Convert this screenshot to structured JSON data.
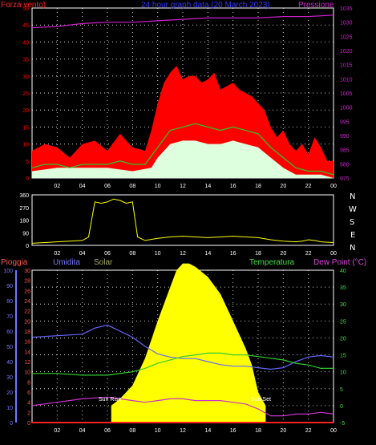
{
  "colors": {
    "background": "#000000",
    "gust": "#ff0000",
    "average_wind": "#22cc22",
    "min_wind": "#ddffdd",
    "pressure": "#cc22cc",
    "direction": "#ffff00",
    "humidity": "#6666ff",
    "temperature": "#33cc33",
    "dewpoint": "#cc33cc",
    "rain": "#ff2222",
    "solar": "#ffff00",
    "rain_axis": "#ff5555",
    "hum_axis": "#7777ff",
    "temp_axis": "#44dd44",
    "grid": "#ffffff",
    "title": "#3333ff"
  },
  "wind_panel": {
    "left_label": "Forza vento)",
    "title": "24 hour graph data (20 March 2023)",
    "right_label": "Pressione"
  },
  "dir_panel": {
    "compass": [
      "N",
      "W",
      "S",
      "E",
      "N"
    ]
  },
  "weather_panel": {
    "labels": {
      "rain": "Pioggia",
      "humidity": "Umidita",
      "solar": "Solar",
      "temperature": "Temperatura",
      "dewpoint": "Dew Point (°C)"
    },
    "sunrise_label": "Sun Rise",
    "sunset_label": "Sun Set"
  },
  "chart_data": [
    {
      "type": "line",
      "title": "24 hour graph data (20 March 2023)",
      "x_ticks": [
        "02",
        "04",
        "06",
        "08",
        "10",
        "12",
        "14",
        "16",
        "18",
        "20",
        "22",
        "00"
      ],
      "x_range_hours": [
        0,
        24
      ],
      "y_left_label": "Forza vento)",
      "y_left_ticks": [
        0,
        5,
        10,
        15,
        20,
        25,
        30,
        35,
        40,
        45,
        50
      ],
      "y_left_range": [
        0,
        50
      ],
      "y_right_label": "Pressione",
      "y_right_ticks": [
        975,
        980,
        985,
        990,
        995,
        1000,
        1005,
        1010,
        1015,
        1020,
        1025,
        1030,
        1035
      ],
      "y_right_range": [
        975,
        1035
      ],
      "grid": true,
      "series": [
        {
          "axis": "right",
          "points": [
            [
              0,
              1028
            ],
            [
              2,
              1028.5
            ],
            [
              4,
              1029.5
            ],
            [
              6,
              1030
            ],
            [
              8,
              1030
            ],
            [
              10,
              1030.5
            ],
            [
              12,
              1031
            ],
            [
              14,
              1031.5
            ],
            [
              16,
              1031.5
            ],
            [
              18,
              1031.5
            ],
            [
              20,
              1032
            ],
            [
              22,
              1032
            ],
            [
              24,
              1032.5
            ]
          ]
        },
        {
          "axis": "left",
          "points": [
            [
              0,
              8
            ],
            [
              1,
              10
            ],
            [
              2,
              9
            ],
            [
              3,
              6
            ],
            [
              4,
              10
            ],
            [
              5,
              11
            ],
            [
              6,
              8
            ],
            [
              7,
              13
            ],
            [
              8,
              9
            ],
            [
              9,
              8
            ],
            [
              9.5,
              14
            ],
            [
              10,
              22
            ],
            [
              10.5,
              28
            ],
            [
              11,
              31
            ],
            [
              11.5,
              33
            ],
            [
              12,
              29
            ],
            [
              12.5,
              30
            ],
            [
              13,
              30
            ],
            [
              13.5,
              28
            ],
            [
              14,
              29
            ],
            [
              14.5,
              31
            ],
            [
              15,
              26
            ],
            [
              15.5,
              27
            ],
            [
              16,
              28
            ],
            [
              16.5,
              26
            ],
            [
              17,
              25
            ],
            [
              17.5,
              24
            ],
            [
              18,
              22
            ],
            [
              18.5,
              20
            ],
            [
              19,
              15
            ],
            [
              19.5,
              12
            ],
            [
              20,
              14
            ],
            [
              20.5,
              10
            ],
            [
              21,
              8
            ],
            [
              21.5,
              10
            ],
            [
              22,
              7
            ],
            [
              22.5,
              12
            ],
            [
              23,
              9
            ],
            [
              23.5,
              5
            ],
            [
              24,
              5
            ]
          ]
        },
        {
          "axis": "left",
          "points": [
            [
              0,
              3
            ],
            [
              1,
              4
            ],
            [
              2,
              4
            ],
            [
              3,
              3
            ],
            [
              4,
              4
            ],
            [
              5,
              4
            ],
            [
              6,
              4
            ],
            [
              7,
              5
            ],
            [
              8,
              4
            ],
            [
              9,
              4
            ],
            [
              10,
              9
            ],
            [
              11,
              14
            ],
            [
              12,
              15
            ],
            [
              13,
              16
            ],
            [
              14,
              15
            ],
            [
              15,
              14
            ],
            [
              16,
              15
            ],
            [
              17,
              14
            ],
            [
              18,
              13
            ],
            [
              19,
              9
            ],
            [
              20,
              6
            ],
            [
              21,
              3
            ],
            [
              22,
              2
            ],
            [
              23,
              2
            ],
            [
              24,
              1
            ]
          ]
        },
        {
          "axis": "left",
          "points": [
            [
              0,
              2
            ],
            [
              2,
              3
            ],
            [
              4,
              3
            ],
            [
              6,
              3
            ],
            [
              8,
              2
            ],
            [
              9.5,
              3
            ],
            [
              10,
              6
            ],
            [
              11,
              10
            ],
            [
              12,
              11
            ],
            [
              13,
              11
            ],
            [
              14,
              10
            ],
            [
              15,
              10
            ],
            [
              16,
              11
            ],
            [
              17,
              10
            ],
            [
              18,
              9
            ],
            [
              19,
              6
            ],
            [
              20,
              3
            ],
            [
              21,
              1
            ],
            [
              22,
              1
            ],
            [
              23,
              1
            ],
            [
              24,
              0
            ]
          ]
        }
      ]
    },
    {
      "type": "line",
      "x_ticks": [
        "02",
        "04",
        "06",
        "08",
        "10",
        "12",
        "14",
        "16",
        "18",
        "20",
        "22",
        "00"
      ],
      "x_range_hours": [
        0,
        24
      ],
      "y_ticks": [
        0,
        90,
        180,
        270,
        360
      ],
      "y_range": [
        0,
        360
      ],
      "series": [
        {
          "points": [
            [
              0,
              15
            ],
            [
              1,
              20
            ],
            [
              2,
              25
            ],
            [
              3,
              30
            ],
            [
              4,
              35
            ],
            [
              4.5,
              60
            ],
            [
              5,
              310
            ],
            [
              5.5,
              300
            ],
            [
              6,
              310
            ],
            [
              6.5,
              330
            ],
            [
              7,
              320
            ],
            [
              7.5,
              300
            ],
            [
              8,
              310
            ],
            [
              8.4,
              60
            ],
            [
              9,
              35
            ],
            [
              10,
              50
            ],
            [
              11,
              60
            ],
            [
              12,
              65
            ],
            [
              13,
              60
            ],
            [
              14,
              55
            ],
            [
              15,
              60
            ],
            [
              16,
              65
            ],
            [
              17,
              60
            ],
            [
              18,
              55
            ],
            [
              19,
              40
            ],
            [
              20,
              30
            ],
            [
              21,
              25
            ],
            [
              21.5,
              30
            ],
            [
              22,
              40
            ],
            [
              22.5,
              35
            ],
            [
              23,
              25
            ],
            [
              24,
              20
            ]
          ]
        }
      ]
    },
    {
      "type": "line",
      "x_ticks": [
        "02",
        "04",
        "06",
        "08",
        "10",
        "12",
        "14",
        "16",
        "18",
        "20",
        "22",
        "00"
      ],
      "x_range_hours": [
        0,
        24
      ],
      "y_rain_ticks": [
        0,
        2,
        4,
        6,
        8,
        10,
        12,
        14,
        16,
        18,
        20,
        22,
        24,
        26,
        28,
        30
      ],
      "y_rain_range": [
        0,
        30
      ],
      "y_humidity_ticks": [
        0,
        10,
        20,
        30,
        40,
        50,
        60,
        70,
        80,
        90,
        100
      ],
      "y_humidity_range": [
        0,
        100
      ],
      "y_temp_ticks": [
        -5,
        0,
        5,
        10,
        15,
        20,
        25,
        30,
        35,
        40
      ],
      "y_temp_range": [
        -5,
        40
      ],
      "grid": true,
      "series": [
        {
          "name": "Umidita",
          "points": [
            [
              0,
              56
            ],
            [
              2,
              57
            ],
            [
              4,
              58
            ],
            [
              5,
              62
            ],
            [
              6,
              64
            ],
            [
              7,
              60
            ],
            [
              8,
              56
            ],
            [
              9,
              50
            ],
            [
              10,
              45
            ],
            [
              11,
              43
            ],
            [
              12,
              42
            ],
            [
              13,
              42
            ],
            [
              14,
              40
            ],
            [
              15,
              38
            ],
            [
              16,
              37
            ],
            [
              17,
              37
            ],
            [
              18,
              36
            ],
            [
              19,
              35
            ],
            [
              20,
              36
            ],
            [
              21,
              40
            ],
            [
              22,
              43
            ],
            [
              23,
              44
            ],
            [
              24,
              43
            ]
          ]
        },
        {
          "name": "Temperatura",
          "points": [
            [
              0,
              9.5
            ],
            [
              2,
              9.5
            ],
            [
              4,
              9
            ],
            [
              6,
              9
            ],
            [
              8,
              10
            ],
            [
              9,
              11
            ],
            [
              10,
              12.5
            ],
            [
              11,
              13.5
            ],
            [
              12,
              14.5
            ],
            [
              13,
              15
            ],
            [
              14,
              15.5
            ],
            [
              15,
              15.5
            ],
            [
              16,
              15
            ],
            [
              17,
              15
            ],
            [
              18,
              14.5
            ],
            [
              19,
              14
            ],
            [
              20,
              13.5
            ],
            [
              21,
              12.5
            ],
            [
              22,
              12
            ],
            [
              23,
              11
            ],
            [
              24,
              11
            ]
          ]
        },
        {
          "name": "Dew Point (°C)",
          "points": [
            [
              0,
              0
            ],
            [
              2,
              1
            ],
            [
              4,
              2
            ],
            [
              6,
              2.5
            ],
            [
              7,
              2
            ],
            [
              8,
              1.5
            ],
            [
              9,
              1
            ],
            [
              10,
              1.5
            ],
            [
              11,
              2
            ],
            [
              12,
              2
            ],
            [
              13,
              1.5
            ],
            [
              14,
              1.5
            ],
            [
              15,
              1.5
            ],
            [
              16,
              1
            ],
            [
              17,
              0.5
            ],
            [
              18,
              -1
            ],
            [
              19,
              -3
            ],
            [
              20,
              -3
            ],
            [
              21,
              -2.5
            ],
            [
              22,
              -2.5
            ],
            [
              23,
              -2
            ],
            [
              24,
              -2.5
            ]
          ]
        },
        {
          "name": "Solar",
          "fill": true,
          "points": [
            [
              6.3,
              0
            ],
            [
              7,
              2
            ],
            [
              8,
              6
            ],
            [
              9,
              14
            ],
            [
              10,
              25
            ],
            [
              11,
              35
            ],
            [
              11.5,
              40
            ],
            [
              12,
              42
            ],
            [
              12.5,
              42
            ],
            [
              13,
              41
            ],
            [
              14,
              38
            ],
            [
              15,
              33
            ],
            [
              16,
              25
            ],
            [
              17,
              17
            ],
            [
              17.5,
              12
            ],
            [
              18,
              4
            ],
            [
              18.6,
              0
            ]
          ]
        },
        {
          "name": "Pioggia",
          "points": [
            [
              0,
              0
            ],
            [
              24,
              0
            ]
          ]
        }
      ]
    }
  ]
}
